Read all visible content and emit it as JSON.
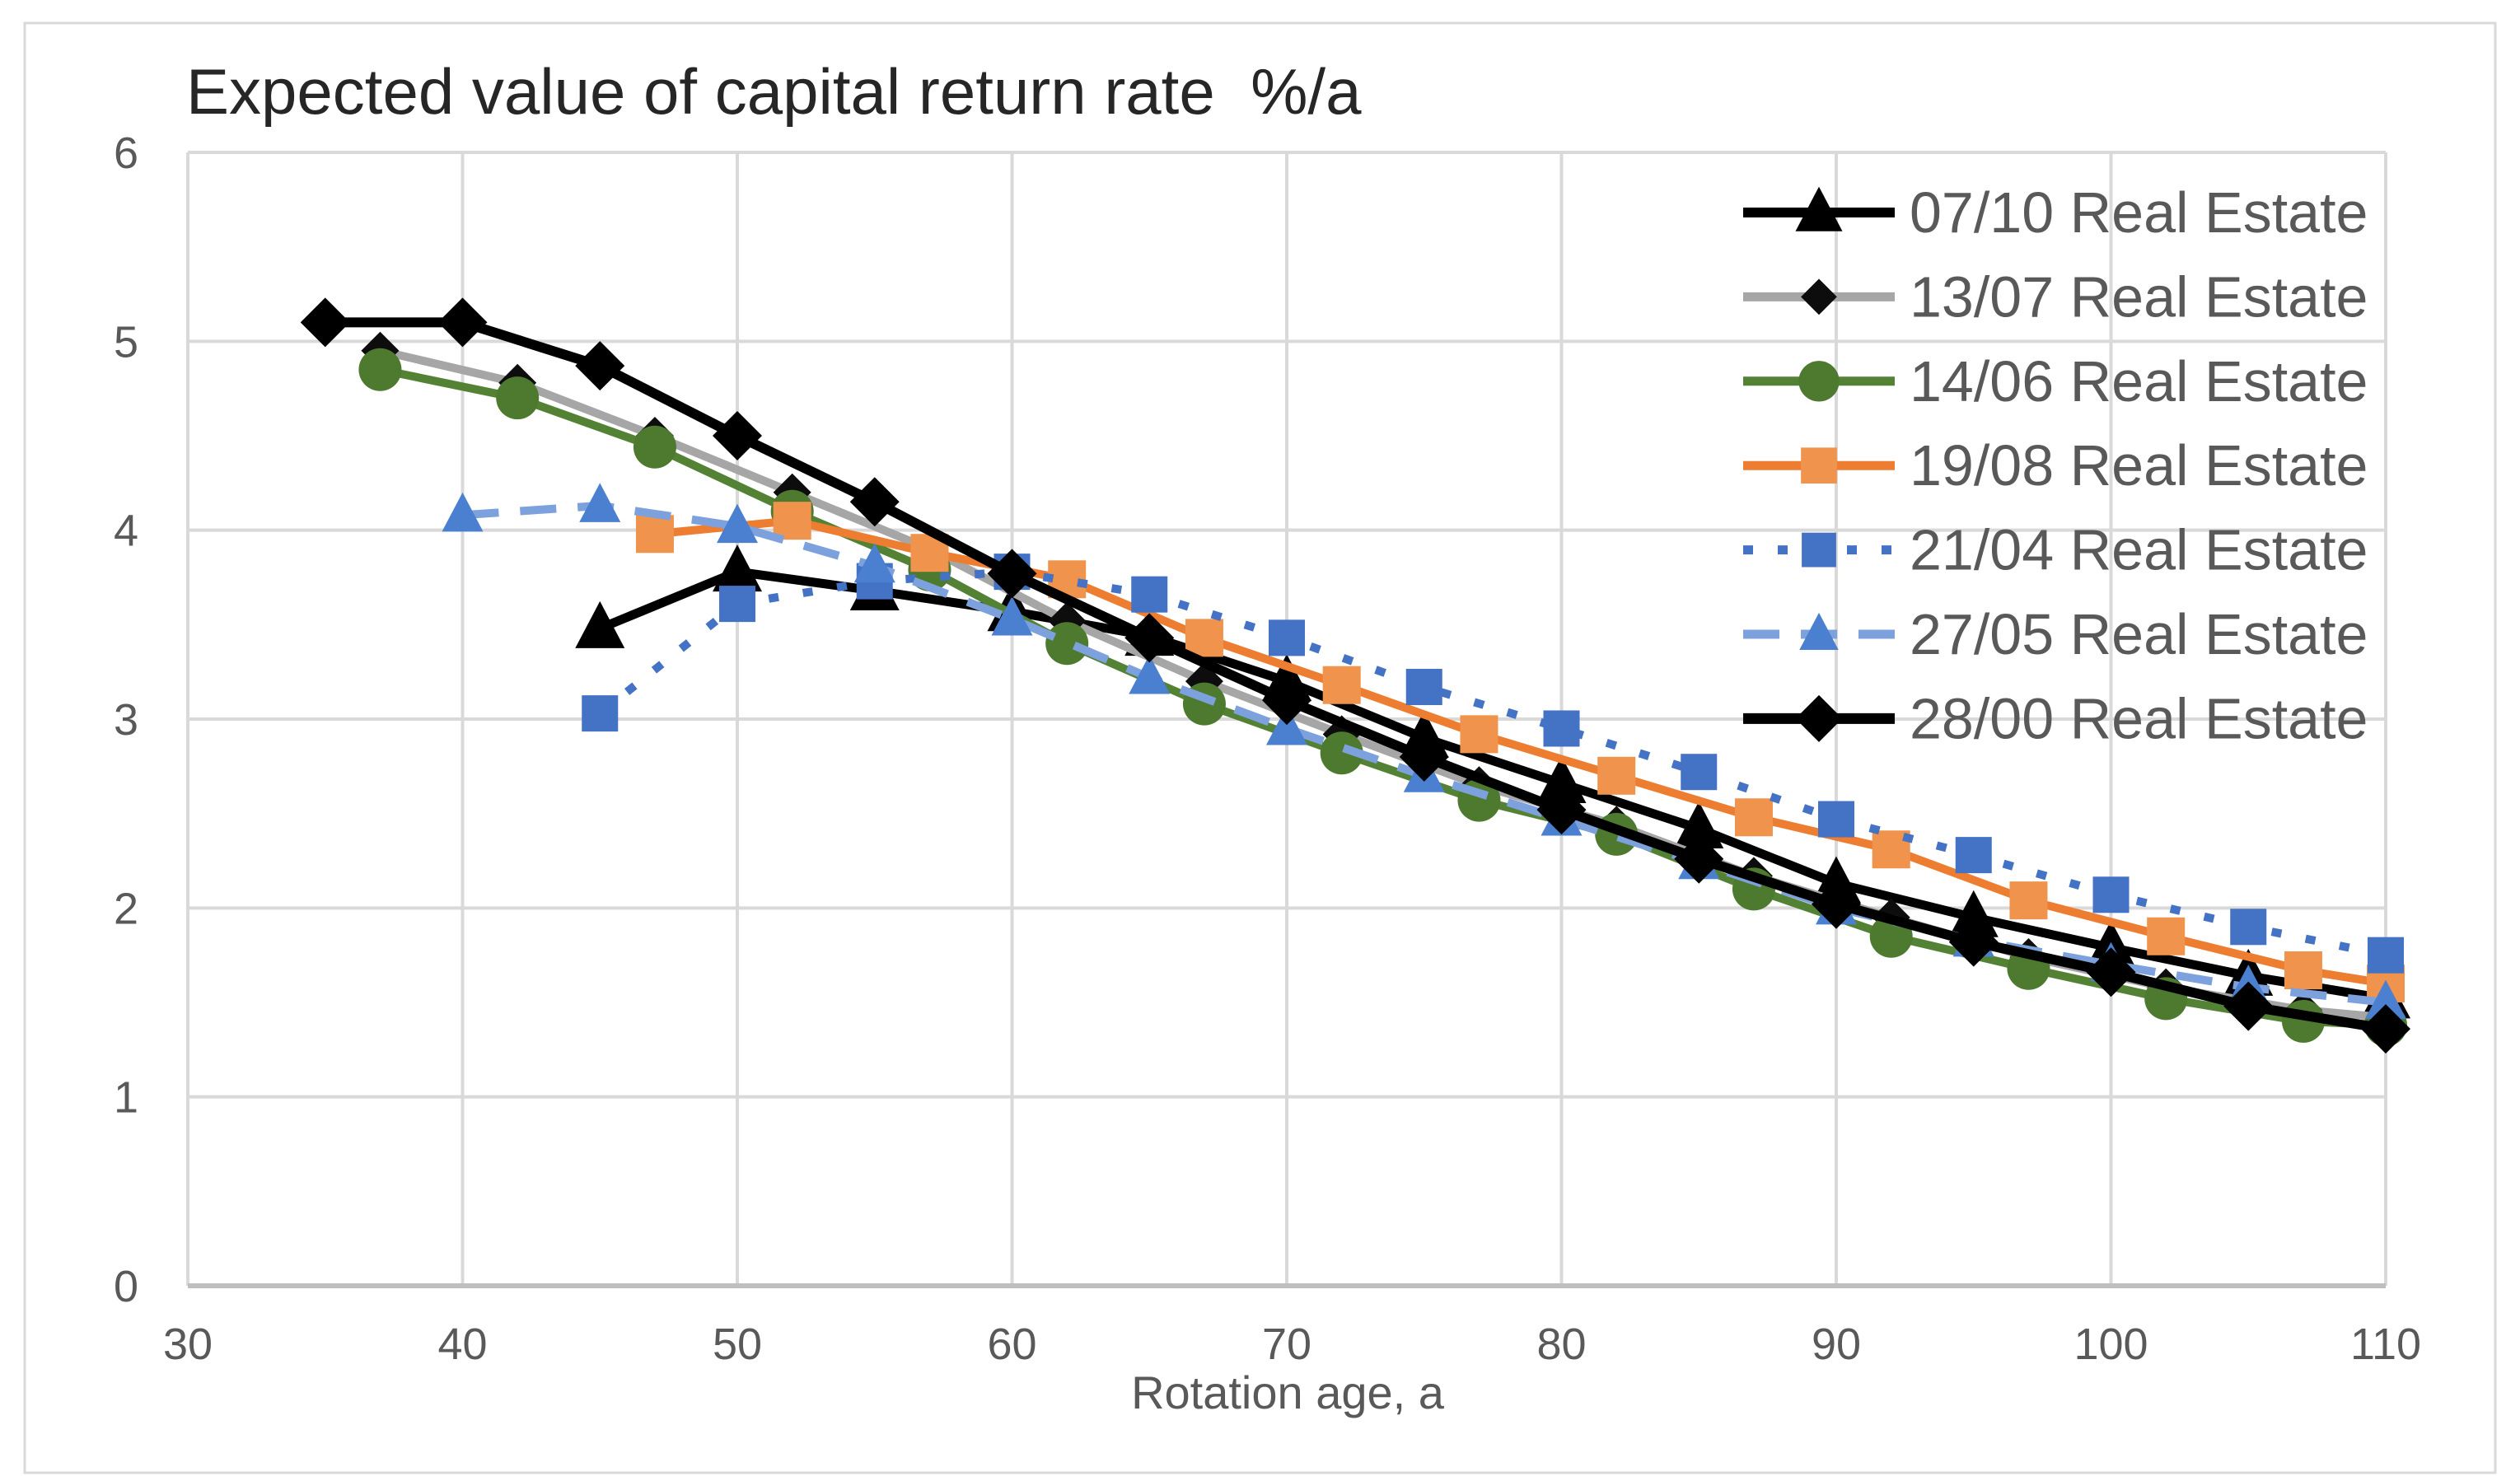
{
  "chart_data": {
    "type": "line",
    "title": "Expected value of capital return rate  %/a",
    "xlabel": "Rotation age, a",
    "ylabel": "",
    "xlim": [
      30,
      110
    ],
    "ylim": [
      0,
      6
    ],
    "x_ticks": [
      30,
      40,
      50,
      60,
      70,
      80,
      90,
      100,
      110
    ],
    "y_ticks": [
      0,
      1,
      2,
      3,
      4,
      5,
      6
    ],
    "grid": true,
    "legend_position": "top-right-inside",
    "style": {
      "grid_color": "#d9d9d9",
      "axis_line_color": "#bfbfbf",
      "tick_text_color": "#595959",
      "legend_text_color": "#595959",
      "title_color": "#262626",
      "background": "#ffffff",
      "border_color": "#d9d9d9"
    },
    "series": [
      {
        "name": "07/10 Real Estate",
        "line_color": "#000000",
        "line_style": "solid",
        "line_width": 11,
        "marker": "triangle",
        "marker_color": "#000000",
        "marker_size": 30,
        "points": [
          [
            45,
            3.48
          ],
          [
            50,
            3.78
          ],
          [
            55,
            3.68
          ],
          [
            60,
            3.57
          ],
          [
            65,
            3.44
          ],
          [
            70,
            3.2
          ],
          [
            75,
            2.9
          ],
          [
            80,
            2.66
          ],
          [
            85,
            2.42
          ],
          [
            90,
            2.13
          ],
          [
            95,
            1.95
          ],
          [
            100,
            1.79
          ],
          [
            105,
            1.64
          ],
          [
            110,
            1.52
          ]
        ]
      },
      {
        "name": "13/07 Real Estate",
        "line_color": "#a6a6a6",
        "line_style": "solid",
        "line_width": 10,
        "marker": "diamond",
        "marker_color": "#0d0d0d",
        "marker_size": 23,
        "points": [
          [
            37,
            4.95
          ],
          [
            42,
            4.78
          ],
          [
            47,
            4.5
          ],
          [
            52,
            4.2
          ],
          [
            57,
            3.9
          ],
          [
            62,
            3.52
          ],
          [
            67,
            3.2
          ],
          [
            72,
            2.92
          ],
          [
            77,
            2.65
          ],
          [
            82,
            2.44
          ],
          [
            87,
            2.17
          ],
          [
            92,
            1.95
          ],
          [
            97,
            1.74
          ],
          [
            102,
            1.58
          ],
          [
            107,
            1.46
          ],
          [
            110,
            1.42
          ]
        ]
      },
      {
        "name": "14/06 Real Estate",
        "line_color": "#548235",
        "line_style": "solid",
        "line_width": 10,
        "marker": "circle",
        "marker_color": "#4e7a30",
        "marker_size": 26,
        "points": [
          [
            37,
            4.85
          ],
          [
            42,
            4.7
          ],
          [
            47,
            4.44
          ],
          [
            52,
            4.1
          ],
          [
            57,
            3.79
          ],
          [
            62,
            3.4
          ],
          [
            67,
            3.08
          ],
          [
            72,
            2.82
          ],
          [
            77,
            2.57
          ],
          [
            82,
            2.39
          ],
          [
            87,
            2.1
          ],
          [
            92,
            1.85
          ],
          [
            97,
            1.68
          ],
          [
            102,
            1.52
          ],
          [
            107,
            1.4
          ],
          [
            110,
            1.38
          ]
        ]
      },
      {
        "name": "19/08 Real Estate",
        "line_color": "#ed7d31",
        "line_style": "solid",
        "line_width": 10,
        "marker": "square",
        "marker_color": "#f0944d",
        "marker_size": 23,
        "points": [
          [
            47,
            3.98
          ],
          [
            52,
            4.05
          ],
          [
            57,
            3.88
          ],
          [
            62,
            3.74
          ],
          [
            67,
            3.43
          ],
          [
            72,
            3.18
          ],
          [
            77,
            2.92
          ],
          [
            82,
            2.7
          ],
          [
            87,
            2.48
          ],
          [
            92,
            2.31
          ],
          [
            97,
            2.04
          ],
          [
            102,
            1.85
          ],
          [
            107,
            1.67
          ],
          [
            110,
            1.6
          ]
        ]
      },
      {
        "name": "21/04 Real Estate",
        "line_color": "#4472c4",
        "line_style": "dotted",
        "line_width": 10,
        "marker": "square",
        "marker_color": "#4472c4",
        "marker_size": 22,
        "points": [
          [
            45,
            3.03
          ],
          [
            50,
            3.61
          ],
          [
            55,
            3.73
          ],
          [
            60,
            3.78
          ],
          [
            65,
            3.66
          ],
          [
            70,
            3.43
          ],
          [
            75,
            3.17
          ],
          [
            80,
            2.95
          ],
          [
            85,
            2.72
          ],
          [
            90,
            2.47
          ],
          [
            95,
            2.28
          ],
          [
            100,
            2.07
          ],
          [
            105,
            1.9
          ],
          [
            110,
            1.75
          ]
        ]
      },
      {
        "name": "27/05 Real Estate",
        "line_color": "#7ca1dc",
        "line_style": "dashed",
        "line_width": 10,
        "marker": "triangle",
        "marker_color": "#4a80cf",
        "marker_size": 25,
        "points": [
          [
            40,
            4.08
          ],
          [
            45,
            4.13
          ],
          [
            50,
            4.02
          ],
          [
            55,
            3.81
          ],
          [
            60,
            3.53
          ],
          [
            65,
            3.22
          ],
          [
            70,
            2.95
          ],
          [
            75,
            2.7
          ],
          [
            80,
            2.47
          ],
          [
            85,
            2.24
          ],
          [
            90,
            2.0
          ],
          [
            95,
            1.83
          ],
          [
            100,
            1.7
          ],
          [
            105,
            1.58
          ],
          [
            110,
            1.5
          ]
        ]
      },
      {
        "name": "28/00 Real Estate",
        "line_color": "#000000",
        "line_style": "solid",
        "line_width": 12,
        "marker": "diamond",
        "marker_color": "#000000",
        "marker_size": 30,
        "points": [
          [
            35,
            5.1
          ],
          [
            40,
            5.1
          ],
          [
            45,
            4.87
          ],
          [
            50,
            4.5
          ],
          [
            55,
            4.15
          ],
          [
            60,
            3.77
          ],
          [
            65,
            3.43
          ],
          [
            70,
            3.1
          ],
          [
            75,
            2.8
          ],
          [
            80,
            2.52
          ],
          [
            85,
            2.26
          ],
          [
            90,
            2.02
          ],
          [
            95,
            1.82
          ],
          [
            100,
            1.66
          ],
          [
            105,
            1.48
          ],
          [
            110,
            1.36
          ]
        ]
      }
    ]
  }
}
